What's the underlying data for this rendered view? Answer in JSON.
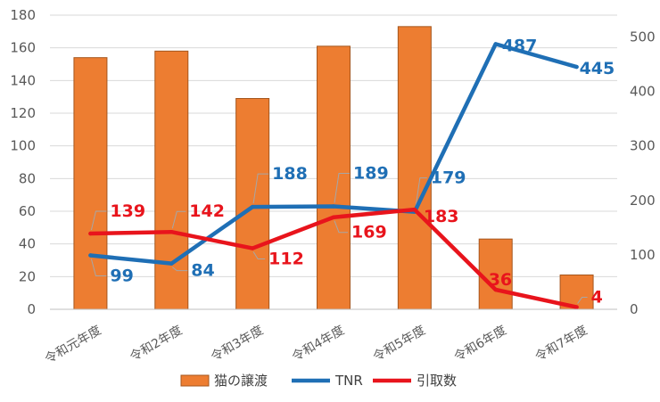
{
  "chart_data": {
    "type": "bar",
    "categories": [
      "令和元年度",
      "令和2年度",
      "令和3年度",
      "令和4年度",
      "令和5年度",
      "令和6年度",
      "令和7年度"
    ],
    "series": [
      {
        "name": "猫の譲渡",
        "type": "bar",
        "axis": "left",
        "color": "#ed7d31",
        "values": [
          154,
          158,
          129,
          161,
          173,
          43,
          21
        ]
      },
      {
        "name": "TNR",
        "type": "line",
        "axis": "right",
        "color": "#1f6fb5",
        "values": [
          99,
          84,
          188,
          189,
          179,
          487,
          445
        ]
      },
      {
        "name": "引取数",
        "type": "line",
        "axis": "right",
        "color": "#e8141c",
        "values": [
          139,
          142,
          112,
          169,
          183,
          36,
          4
        ]
      }
    ],
    "y_left": {
      "min": 0,
      "max": 180,
      "ticks": [
        0,
        20,
        40,
        60,
        80,
        100,
        120,
        140,
        160,
        180
      ]
    },
    "y_right": {
      "min": 0,
      "max": 540,
      "ticks": [
        0,
        100,
        200,
        300,
        400,
        500
      ]
    },
    "grid": true,
    "legend_position": "bottom",
    "title": "",
    "xlabel": "",
    "ylabel": ""
  }
}
